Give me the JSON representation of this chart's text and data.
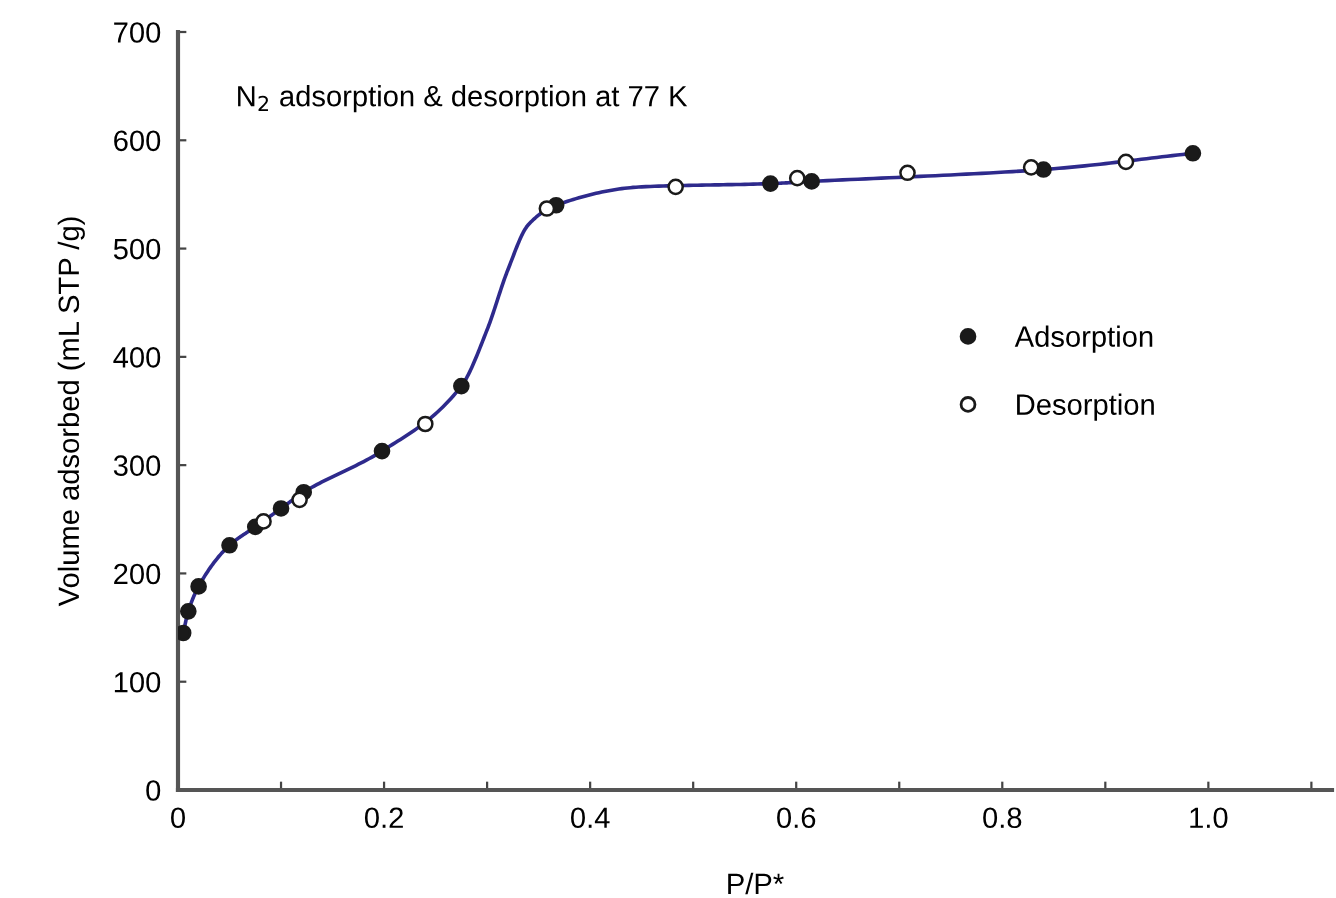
{
  "chart_data": {
    "type": "scatter",
    "xlabel": "P/P*",
    "ylabel": "Volume adsorbed (mL STP /g)",
    "annotations": [
      "N$_{2}$ adsorption & desorption at 77 K"
    ],
    "xlim": [
      0,
      1.12
    ],
    "ylim": [
      0,
      700
    ],
    "xticks": [
      0,
      {
        "value": 0.1,
        "label": null
      },
      0.2,
      {
        "value": 0.3,
        "label": null
      },
      0.4,
      {
        "value": 0.5,
        "label": null
      },
      0.6,
      {
        "value": 0.7,
        "label": null
      },
      0.8,
      {
        "value": 0.9,
        "label": null
      },
      {
        "value": 1.0,
        "label": "1.0"
      },
      {
        "value": 1.1,
        "label": null
      }
    ],
    "yticks": [
      0,
      100,
      200,
      300,
      400,
      500,
      600,
      700
    ],
    "grid": false,
    "legend": "right",
    "marker": "circle",
    "series": [
      {
        "type": "line",
        "color": "#2e2a8c",
        "marker": "none",
        "x": [
          0.005,
          0.01,
          0.02,
          0.05,
          0.075,
          0.1,
          0.122,
          0.198,
          0.275,
          0.3,
          0.32,
          0.34,
          0.367,
          0.45,
          0.575,
          0.615,
          0.84,
          0.985
        ],
        "values": [
          145,
          165,
          188,
          226,
          243,
          260,
          275,
          313,
          373,
          425,
          480,
          522,
          540,
          557,
          560,
          562,
          573,
          588
        ]
      },
      {
        "name": "Adsorption",
        "color": "#1a1a1a",
        "x": [
          0.005,
          0.01,
          0.02,
          0.05,
          0.075,
          0.1,
          0.122,
          0.198,
          0.275,
          0.367,
          0.575,
          0.615,
          0.84,
          0.985
        ],
        "values": [
          145,
          165,
          188,
          226,
          243,
          260,
          275,
          313,
          373,
          540,
          560,
          562,
          573,
          588
        ]
      },
      {
        "name": "Desorption",
        "color": "#ffffff",
        "x": [
          0.083,
          0.118,
          0.24,
          0.358,
          0.483,
          0.601,
          0.708,
          0.828,
          0.92
        ],
        "values": [
          248,
          268,
          338,
          537,
          557,
          565,
          570,
          575,
          580
        ]
      }
    ]
  }
}
